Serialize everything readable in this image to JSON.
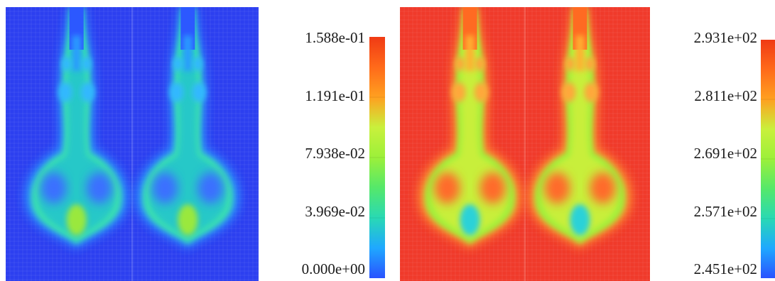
{
  "chart_data": [
    {
      "type": "heatmap",
      "title": "",
      "colormap": [
        "#2a52ff",
        "#1fa8ff",
        "#29d9b4",
        "#55e86a",
        "#9cf03a",
        "#c9f03c",
        "#ffa020",
        "#ff6a1a",
        "#f03a14"
      ],
      "background_color": "#2c3ff0",
      "colorbar": {
        "range": [
          0.0,
          0.1588
        ],
        "tick_values": [
          0.1588,
          0.1191,
          0.07938,
          0.03969,
          0.0
        ],
        "tick_labels": [
          "1.588e-01",
          "1.191e-01",
          "7.938e-02",
          "3.969e-02",
          "0.000e+00"
        ]
      },
      "panels": [
        "left",
        "right"
      ]
    },
    {
      "type": "heatmap",
      "title": "",
      "colormap": [
        "#2a52ff",
        "#1fa8ff",
        "#29d9b4",
        "#55e86a",
        "#9cf03a",
        "#c9f03c",
        "#ffa020",
        "#ff6a1a",
        "#f03a14"
      ],
      "background_color": "#f03a2a",
      "colorbar": {
        "range": [
          245.1,
          293.1
        ],
        "tick_values": [
          293.1,
          281.1,
          269.1,
          257.1,
          245.1
        ],
        "tick_labels": [
          "2.931e+02",
          "2.811e+02",
          "2.691e+02",
          "2.571e+02",
          "2.451e+02"
        ]
      },
      "panels": [
        "left",
        "right"
      ]
    }
  ]
}
